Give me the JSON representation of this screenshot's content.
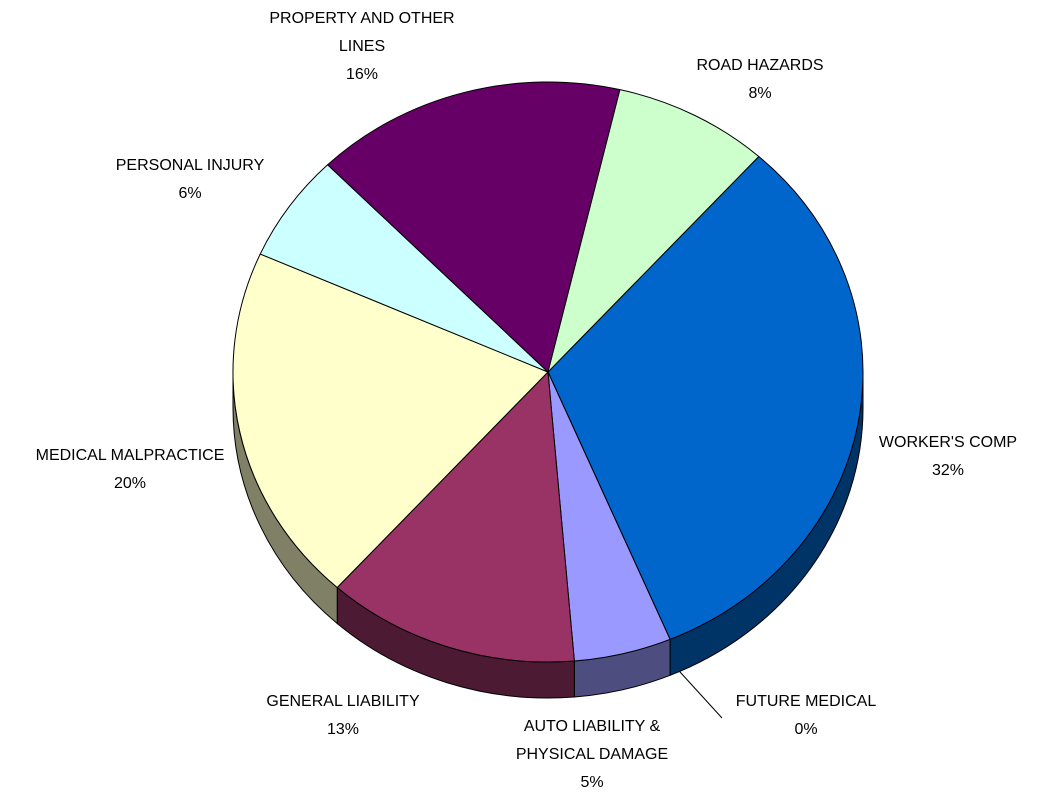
{
  "chart_data": {
    "type": "pie",
    "categories": [
      "WORKER'S COMP",
      "FUTURE MEDICAL",
      "AUTO LIABILITY & PHYSICAL DAMAGE",
      "GENERAL LIABILITY",
      "MEDICAL MALPRACTICE",
      "PERSONAL INJURY",
      "PROPERTY AND OTHER LINES",
      "ROAD HAZARDS"
    ],
    "values": [
      32,
      0,
      5,
      13,
      20,
      6,
      16,
      8
    ],
    "value_labels": [
      "32%",
      "0%",
      "5%",
      "13%",
      "20%",
      "6%",
      "16%",
      "8%"
    ],
    "colors": [
      "#0066cc",
      "#ccccff",
      "#9999ff",
      "#993366",
      "#ffffcc",
      "#ccffff",
      "#660066",
      "#ccffcc"
    ],
    "side_colors": [
      "#003366",
      "#666680",
      "#4d4d80",
      "#4d1a33",
      "#808066",
      "#668080",
      "#330033",
      "#668066"
    ]
  }
}
